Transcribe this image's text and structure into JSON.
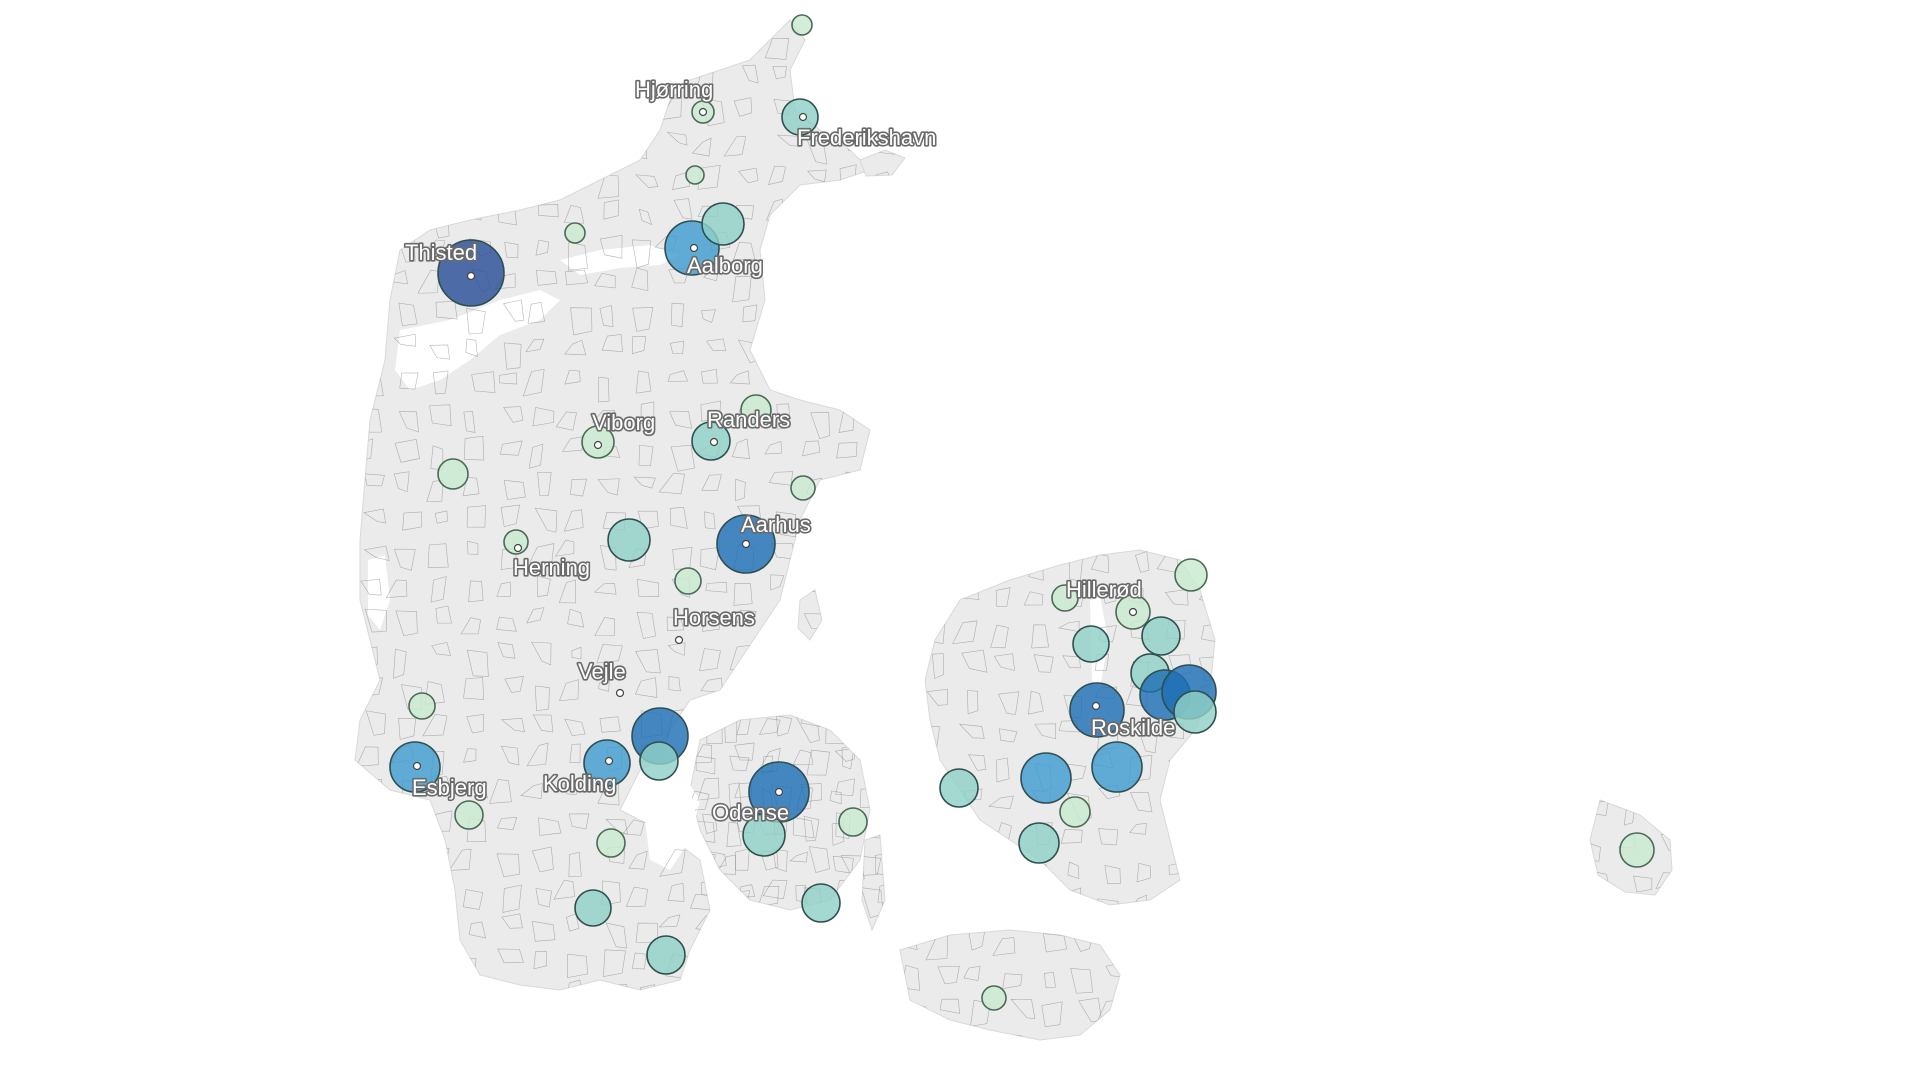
{
  "cities": [
    {
      "id": "hjorring",
      "name": "Hjørring"
    },
    {
      "id": "frederikshavn",
      "name": "Frederikshavn"
    },
    {
      "id": "thisted",
      "name": "Thisted"
    },
    {
      "id": "aalborg",
      "name": "Aalborg"
    },
    {
      "id": "viborg",
      "name": "Viborg"
    },
    {
      "id": "randers",
      "name": "Randers"
    },
    {
      "id": "aarhus",
      "name": "Aarhus"
    },
    {
      "id": "herning",
      "name": "Herning"
    },
    {
      "id": "horsens",
      "name": "Horsens"
    },
    {
      "id": "vejle",
      "name": "Vejle"
    },
    {
      "id": "esbjerg",
      "name": "Esbjerg"
    },
    {
      "id": "kolding",
      "name": "Kolding"
    },
    {
      "id": "odense",
      "name": "Odense"
    },
    {
      "id": "hillerod",
      "name": "Hillerød"
    },
    {
      "id": "roskilde",
      "name": "Roskilde"
    }
  ],
  "colors": {
    "land": "#ebebeb",
    "level_1": "#c9ead0",
    "level_2": "#8fd1c6",
    "level_3": "#3f9ccf",
    "level_4": "#1f6fb4",
    "level_5": "#2a4e96"
  }
}
